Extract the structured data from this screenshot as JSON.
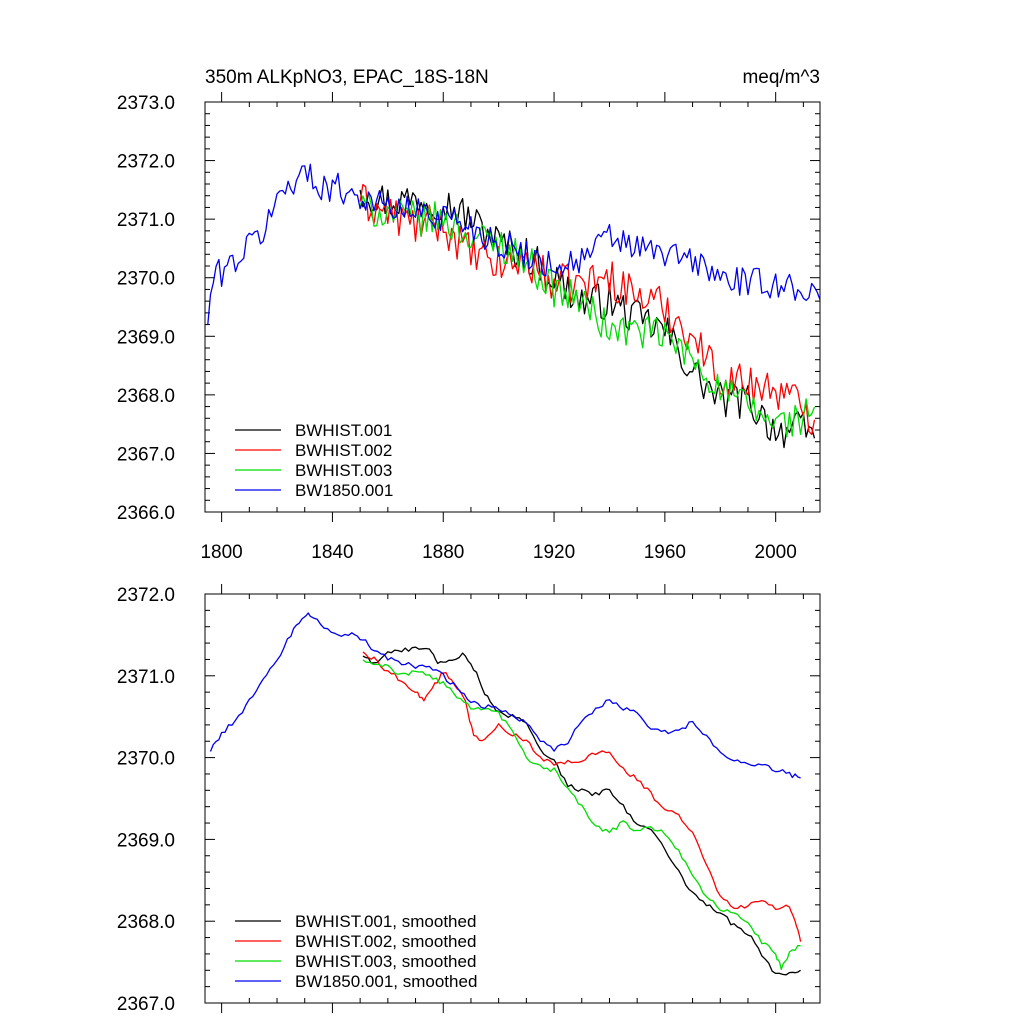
{
  "title_left": "350m ALKpNO3, EPAC_18S-18N",
  "title_right": "meq/m^3",
  "colors": {
    "BWHIST.001": "#000000",
    "BWHIST.002": "#ff0000",
    "BWHIST.003": "#00dd00",
    "BW1850.001": "#0000ee"
  },
  "chart_data": [
    {
      "type": "line",
      "panel": "top",
      "title": "350m ALKpNO3, EPAC_18S-18N",
      "units": "meq/m^3",
      "xlim": [
        1794,
        2016
      ],
      "ylim": [
        2366.0,
        2373.0
      ],
      "x_ticks": [
        1800,
        1840,
        1880,
        1920,
        1960,
        2000
      ],
      "x_tick_labels": [
        "1800",
        "1840",
        "1880",
        "1920",
        "1960",
        "2000"
      ],
      "y_ticks": [
        2366.0,
        2367.0,
        2368.0,
        2369.0,
        2370.0,
        2371.0,
        2372.0,
        2373.0
      ],
      "y_tick_labels": [
        "2366.0",
        "2367.0",
        "2368.0",
        "2369.0",
        "2370.0",
        "2371.0",
        "2372.0",
        "2373.0"
      ],
      "legend": "bottom-left",
      "series": [
        {
          "name": "BWHIST.001",
          "label": "BWHIST.001",
          "color": "#000000",
          "noise": 0.32,
          "anchors": [
            [
              1850,
              2371.5
            ],
            [
              1860,
              2371.3
            ],
            [
              1870,
              2371.35
            ],
            [
              1880,
              2371.3
            ],
            [
              1890,
              2371.0
            ],
            [
              1900,
              2370.6
            ],
            [
              1910,
              2370.4
            ],
            [
              1920,
              2370.0
            ],
            [
              1930,
              2369.6
            ],
            [
              1940,
              2369.6
            ],
            [
              1950,
              2369.3
            ],
            [
              1960,
              2369.1
            ],
            [
              1970,
              2368.4
            ],
            [
              1980,
              2367.9
            ],
            [
              1990,
              2367.9
            ],
            [
              2000,
              2367.4
            ],
            [
              2010,
              2367.4
            ],
            [
              2014,
              2367.3
            ]
          ]
        },
        {
          "name": "BWHIST.002",
          "label": "BWHIST.002",
          "color": "#ff0000",
          "noise": 0.34,
          "anchors": [
            [
              1850,
              2371.3
            ],
            [
              1860,
              2371.1
            ],
            [
              1870,
              2370.9
            ],
            [
              1880,
              2370.9
            ],
            [
              1890,
              2370.4
            ],
            [
              1900,
              2370.2
            ],
            [
              1910,
              2370.3
            ],
            [
              1920,
              2369.9
            ],
            [
              1930,
              2369.9
            ],
            [
              1940,
              2370.0
            ],
            [
              1950,
              2369.7
            ],
            [
              1960,
              2369.5
            ],
            [
              1970,
              2369.0
            ],
            [
              1980,
              2368.3
            ],
            [
              1990,
              2368.2
            ],
            [
              2000,
              2368.1
            ],
            [
              2010,
              2367.8
            ],
            [
              2014,
              2367.6
            ]
          ]
        },
        {
          "name": "BWHIST.003",
          "label": "BWHIST.003",
          "color": "#00dd00",
          "noise": 0.3,
          "anchors": [
            [
              1850,
              2371.2
            ],
            [
              1860,
              2371.1
            ],
            [
              1870,
              2371.0
            ],
            [
              1880,
              2371.0
            ],
            [
              1890,
              2370.7
            ],
            [
              1900,
              2370.6
            ],
            [
              1910,
              2370.3
            ],
            [
              1920,
              2369.8
            ],
            [
              1930,
              2369.6
            ],
            [
              1940,
              2369.1
            ],
            [
              1950,
              2369.1
            ],
            [
              1960,
              2369.0
            ],
            [
              1970,
              2368.6
            ],
            [
              1980,
              2368.1
            ],
            [
              1990,
              2367.8
            ],
            [
              2000,
              2367.5
            ],
            [
              2010,
              2367.6
            ],
            [
              2014,
              2367.8
            ]
          ]
        },
        {
          "name": "BW1850.001",
          "label": "BW1850.001",
          "color": "#0000ee",
          "noise": 0.26,
          "anchors": [
            [
              1795,
              2369.2
            ],
            [
              1797,
              2370.0
            ],
            [
              1805,
              2370.3
            ],
            [
              1815,
              2370.8
            ],
            [
              1822,
              2371.5
            ],
            [
              1829,
              2371.8
            ],
            [
              1835,
              2371.6
            ],
            [
              1845,
              2371.5
            ],
            [
              1860,
              2371.2
            ],
            [
              1875,
              2371.1
            ],
            [
              1885,
              2371.0
            ],
            [
              1900,
              2370.6
            ],
            [
              1910,
              2370.4
            ],
            [
              1920,
              2370.2
            ],
            [
              1930,
              2370.3
            ],
            [
              1940,
              2370.7
            ],
            [
              1950,
              2370.5
            ],
            [
              1960,
              2370.4
            ],
            [
              1970,
              2370.3
            ],
            [
              1980,
              2370.0
            ],
            [
              1990,
              2369.9
            ],
            [
              2000,
              2369.9
            ],
            [
              2010,
              2369.8
            ],
            [
              2016,
              2369.7
            ]
          ]
        }
      ]
    },
    {
      "type": "line",
      "panel": "bottom",
      "title": "",
      "xlim": [
        1794,
        2016
      ],
      "ylim": [
        2367.0,
        2372.0
      ],
      "x_ticks": [
        1800,
        1840,
        1880,
        1920,
        1960,
        2000
      ],
      "y_ticks": [
        2367.0,
        2368.0,
        2369.0,
        2370.0,
        2371.0,
        2372.0
      ],
      "y_tick_labels": [
        "2367.0",
        "2368.0",
        "2369.0",
        "2370.0",
        "2371.0",
        "2372.0"
      ],
      "legend": "bottom-left",
      "series": [
        {
          "name": "BWHIST.001, smoothed",
          "label": "BWHIST.001, smoothed",
          "color": "#000000",
          "noise": 0.03,
          "points": [
            [
              1851,
              2371.25
            ],
            [
              1855,
              2371.15
            ],
            [
              1860,
              2371.28
            ],
            [
              1865,
              2371.3
            ],
            [
              1870,
              2371.36
            ],
            [
              1875,
              2371.33
            ],
            [
              1878,
              2371.15
            ],
            [
              1882,
              2371.2
            ],
            [
              1887,
              2371.25
            ],
            [
              1891,
              2371.1
            ],
            [
              1895,
              2370.8
            ],
            [
              1899,
              2370.55
            ],
            [
              1905,
              2370.5
            ],
            [
              1910,
              2370.42
            ],
            [
              1915,
              2370.1
            ],
            [
              1920,
              2369.98
            ],
            [
              1925,
              2369.65
            ],
            [
              1930,
              2369.6
            ],
            [
              1935,
              2369.55
            ],
            [
              1940,
              2369.6
            ],
            [
              1945,
              2369.4
            ],
            [
              1950,
              2369.2
            ],
            [
              1955,
              2369.1
            ],
            [
              1960,
              2368.9
            ],
            [
              1965,
              2368.6
            ],
            [
              1970,
              2368.35
            ],
            [
              1975,
              2368.2
            ],
            [
              1980,
              2368.1
            ],
            [
              1985,
              2367.95
            ],
            [
              1990,
              2367.85
            ],
            [
              1995,
              2367.6
            ],
            [
              2000,
              2367.35
            ],
            [
              2005,
              2367.35
            ],
            [
              2009,
              2367.4
            ]
          ]
        },
        {
          "name": "BWHIST.002, smoothed",
          "label": "BWHIST.002, smoothed",
          "color": "#ff0000",
          "noise": 0.03,
          "points": [
            [
              1851,
              2371.3
            ],
            [
              1855,
              2371.2
            ],
            [
              1860,
              2371.05
            ],
            [
              1865,
              2370.95
            ],
            [
              1870,
              2370.8
            ],
            [
              1873,
              2370.72
            ],
            [
              1877,
              2370.9
            ],
            [
              1880,
              2371.05
            ],
            [
              1884,
              2370.92
            ],
            [
              1888,
              2370.7
            ],
            [
              1891,
              2370.25
            ],
            [
              1895,
              2370.2
            ],
            [
              1900,
              2370.4
            ],
            [
              1905,
              2370.28
            ],
            [
              1910,
              2370.2
            ],
            [
              1915,
              2370.0
            ],
            [
              1920,
              2369.9
            ],
            [
              1925,
              2369.95
            ],
            [
              1930,
              2369.95
            ],
            [
              1935,
              2370.05
            ],
            [
              1940,
              2370.08
            ],
            [
              1945,
              2369.85
            ],
            [
              1950,
              2369.75
            ],
            [
              1955,
              2369.55
            ],
            [
              1960,
              2369.35
            ],
            [
              1965,
              2369.3
            ],
            [
              1970,
              2369.1
            ],
            [
              1975,
              2368.7
            ],
            [
              1980,
              2368.3
            ],
            [
              1985,
              2368.15
            ],
            [
              1990,
              2368.2
            ],
            [
              1995,
              2368.25
            ],
            [
              2000,
              2368.15
            ],
            [
              2005,
              2368.2
            ],
            [
              2007,
              2368.0
            ],
            [
              2009,
              2367.75
            ]
          ]
        },
        {
          "name": "BWHIST.003, smoothed",
          "label": "BWHIST.003, smoothed",
          "color": "#00dd00",
          "noise": 0.03,
          "points": [
            [
              1851,
              2371.2
            ],
            [
              1856,
              2371.15
            ],
            [
              1860,
              2371.12
            ],
            [
              1865,
              2371.0
            ],
            [
              1870,
              2371.05
            ],
            [
              1875,
              2371.0
            ],
            [
              1880,
              2370.9
            ],
            [
              1885,
              2370.75
            ],
            [
              1890,
              2370.62
            ],
            [
              1895,
              2370.58
            ],
            [
              1900,
              2370.55
            ],
            [
              1905,
              2370.3
            ],
            [
              1910,
              2370.0
            ],
            [
              1915,
              2369.88
            ],
            [
              1920,
              2369.85
            ],
            [
              1925,
              2369.6
            ],
            [
              1930,
              2369.4
            ],
            [
              1935,
              2369.15
            ],
            [
              1940,
              2369.1
            ],
            [
              1945,
              2369.2
            ],
            [
              1950,
              2369.1
            ],
            [
              1955,
              2369.15
            ],
            [
              1960,
              2369.08
            ],
            [
              1965,
              2368.85
            ],
            [
              1970,
              2368.55
            ],
            [
              1975,
              2368.3
            ],
            [
              1980,
              2368.15
            ],
            [
              1985,
              2368.12
            ],
            [
              1990,
              2367.98
            ],
            [
              1995,
              2367.75
            ],
            [
              2000,
              2367.6
            ],
            [
              2002,
              2367.42
            ],
            [
              2005,
              2367.6
            ],
            [
              2009,
              2367.7
            ]
          ]
        },
        {
          "name": "BW1850.001, smoothed",
          "label": "BW1850.001, smoothed",
          "color": "#0000ee",
          "noise": 0.03,
          "points": [
            [
              1796,
              2370.08
            ],
            [
              1800,
              2370.3
            ],
            [
              1805,
              2370.45
            ],
            [
              1810,
              2370.7
            ],
            [
              1815,
              2370.95
            ],
            [
              1820,
              2371.2
            ],
            [
              1825,
              2371.5
            ],
            [
              1829,
              2371.72
            ],
            [
              1832,
              2371.75
            ],
            [
              1837,
              2371.6
            ],
            [
              1842,
              2371.5
            ],
            [
              1847,
              2371.5
            ],
            [
              1851,
              2371.45
            ],
            [
              1855,
              2371.3
            ],
            [
              1860,
              2371.22
            ],
            [
              1865,
              2371.15
            ],
            [
              1870,
              2371.12
            ],
            [
              1875,
              2371.1
            ],
            [
              1880,
              2371.0
            ],
            [
              1885,
              2370.85
            ],
            [
              1890,
              2370.7
            ],
            [
              1895,
              2370.62
            ],
            [
              1900,
              2370.6
            ],
            [
              1905,
              2370.5
            ],
            [
              1910,
              2370.42
            ],
            [
              1915,
              2370.2
            ],
            [
              1920,
              2370.1
            ],
            [
              1925,
              2370.2
            ],
            [
              1930,
              2370.45
            ],
            [
              1935,
              2370.6
            ],
            [
              1940,
              2370.7
            ],
            [
              1945,
              2370.6
            ],
            [
              1950,
              2370.55
            ],
            [
              1955,
              2370.35
            ],
            [
              1960,
              2370.32
            ],
            [
              1965,
              2370.32
            ],
            [
              1970,
              2370.45
            ],
            [
              1975,
              2370.25
            ],
            [
              1980,
              2370.05
            ],
            [
              1985,
              2369.95
            ],
            [
              1990,
              2369.92
            ],
            [
              1995,
              2369.9
            ],
            [
              2000,
              2369.85
            ],
            [
              2005,
              2369.8
            ],
            [
              2009,
              2369.75
            ]
          ]
        }
      ]
    }
  ]
}
